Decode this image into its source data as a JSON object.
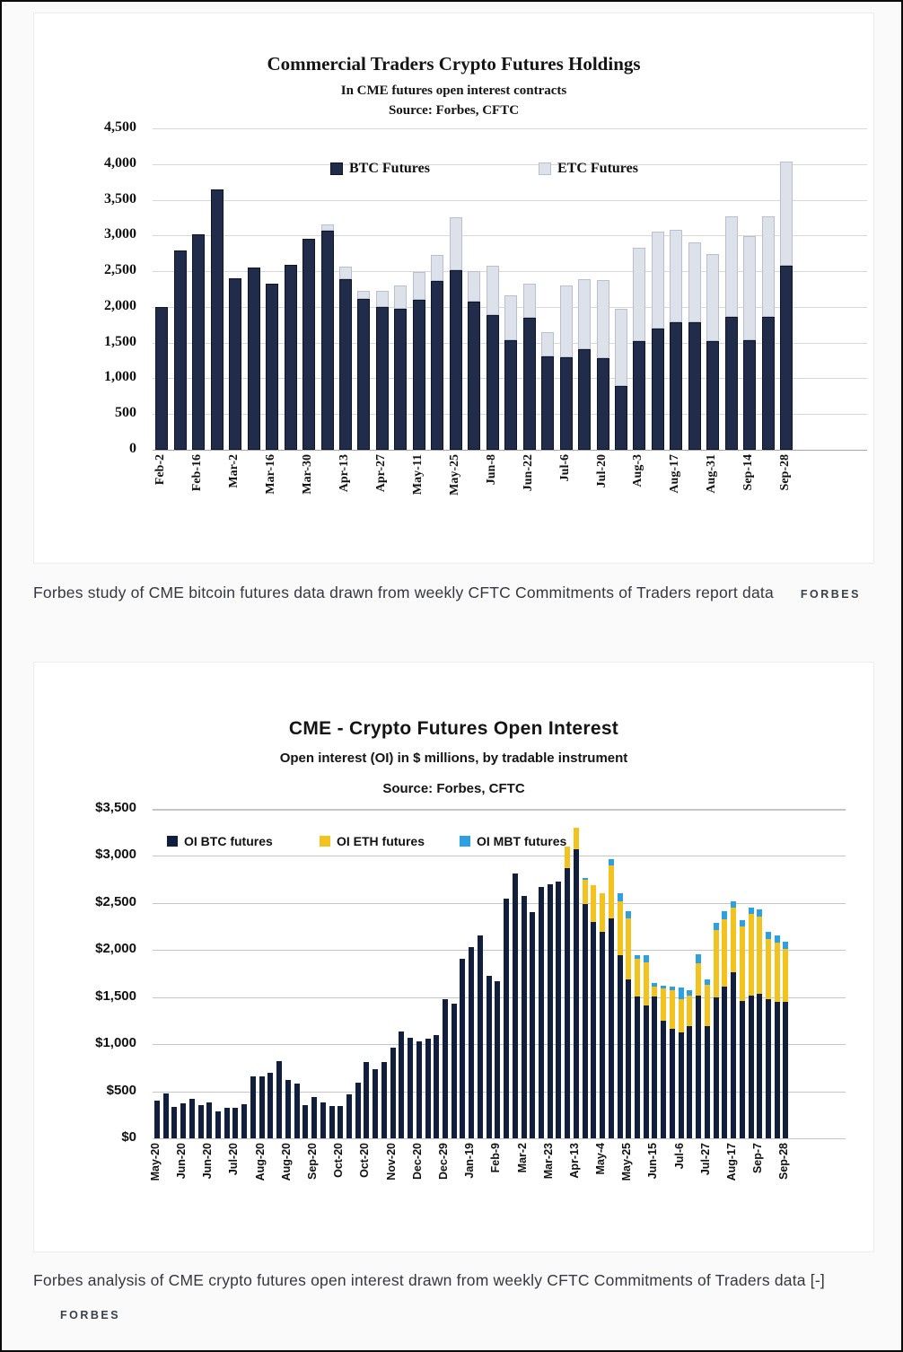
{
  "caption1": {
    "text": "Forbes study of CME bitcoin futures data drawn from weekly CFTC Commitments of Traders report data",
    "brand": "FORBES"
  },
  "caption2": {
    "text": "Forbes analysis of CME crypto futures open interest drawn from weekly CFTC Commitments of Traders data [-]",
    "brand": "FORBES"
  },
  "chart_data": [
    {
      "type": "bar",
      "stacked": true,
      "title": "Commercial Traders Crypto Futures Holdings",
      "subtitle": "In CME futures open interest contracts",
      "source_label": "Source: Forbes, CFTC",
      "xlabel": "",
      "ylabel": "",
      "ylim": [
        0,
        4500
      ],
      "ytick_step": 500,
      "grid": true,
      "legend_position": "inside-top",
      "yticks": [
        "0",
        "500",
        "1,000",
        "1,500",
        "2,000",
        "2,500",
        "3,000",
        "3,500",
        "4,000",
        "4,500"
      ],
      "xticks": [
        "Feb-2",
        "Feb-16",
        "Mar-2",
        "Mar-16",
        "Mar-30",
        "Apr-13",
        "Apr-27",
        "May-11",
        "May-25",
        "Jun-8",
        "Jun-22",
        "Jul-6",
        "Jul-20",
        "Aug-3",
        "Aug-17",
        "Aug-31",
        "Sep-14",
        "Sep-28"
      ],
      "xtick_every": 2,
      "series": [
        {
          "name": "BTC Futures",
          "color": "#202c49",
          "border": "#0c1426",
          "values": [
            2000,
            2790,
            3020,
            3650,
            2400,
            2550,
            2330,
            2590,
            2960,
            3070,
            2390,
            2110,
            2000,
            1970,
            2100,
            2360,
            2520,
            2080,
            1880,
            1530,
            1850,
            1310,
            1300,
            1410,
            1280,
            890,
            1520,
            1700,
            1780,
            1790,
            1520,
            1860,
            1540,
            1860,
            2580
          ]
        },
        {
          "name": "ETC Futures",
          "color": "#dde1ea",
          "border": "#b9bfd0",
          "values": [
            0,
            0,
            0,
            0,
            0,
            0,
            0,
            0,
            0,
            80,
            170,
            110,
            230,
            330,
            390,
            370,
            740,
            420,
            700,
            630,
            480,
            340,
            1000,
            980,
            1100,
            1090,
            1310,
            1360,
            1300,
            1120,
            1220,
            1410,
            1450,
            1410,
            1450
          ]
        }
      ]
    },
    {
      "type": "bar",
      "stacked": true,
      "title": "CME - Crypto Futures Open Interest",
      "subtitle": "Open interest (OI) in $ millions, by tradable instrument",
      "source_label": "Source: Forbes, CFTC",
      "xlabel": "",
      "ylabel": "",
      "ylim": [
        0,
        3500
      ],
      "ytick_step": 500,
      "grid": true,
      "legend_position": "inside-top",
      "yticks": [
        "$0",
        "$500",
        "$1,000",
        "$1,500",
        "$2,000",
        "$2,500",
        "$3,000",
        "$3,500"
      ],
      "xticks": [
        "May-20",
        "Jun-20",
        "Jun-20",
        "Jul-20",
        "Aug-20",
        "Aug-20",
        "Sep-20",
        "Oct-20",
        "Oct-20",
        "Nov-20",
        "Dec-20",
        "Dec-29",
        "Jan-19",
        "Feb-9",
        "Mar-2",
        "Mar-23",
        "Apr-13",
        "May-4",
        "May-25",
        "Jun-15",
        "Jul-6",
        "Jul-27",
        "Aug-17",
        "Sep-7",
        "Sep-28"
      ],
      "xtick_every": 3,
      "series": [
        {
          "name": "OI BTC futures",
          "color": "#121f3c",
          "border": null,
          "values": [
            400,
            480,
            330,
            370,
            420,
            350,
            380,
            290,
            320,
            320,
            360,
            660,
            660,
            700,
            820,
            620,
            580,
            350,
            440,
            380,
            340,
            340,
            470,
            590,
            815,
            735,
            815,
            965,
            1140,
            1070,
            1030,
            1060,
            1100,
            1475,
            1430,
            1910,
            2030,
            2160,
            1730,
            1670,
            2550,
            2810,
            2580,
            2400,
            2670,
            2700,
            2730,
            2870,
            3075,
            2490,
            2300,
            2190,
            2335,
            1950,
            1690,
            1510,
            1415,
            1505,
            1250,
            1160,
            1125,
            1190,
            1520,
            1190,
            1500,
            1615,
            1765,
            1460,
            1520,
            1540,
            1480,
            1450,
            1450
          ]
        },
        {
          "name": "OI ETH futures",
          "color": "#f2c21f",
          "border": null,
          "values": [
            0,
            0,
            0,
            0,
            0,
            0,
            0,
            0,
            0,
            0,
            0,
            0,
            0,
            0,
            0,
            0,
            0,
            0,
            0,
            0,
            0,
            0,
            0,
            0,
            0,
            0,
            0,
            0,
            0,
            0,
            0,
            0,
            0,
            0,
            0,
            0,
            0,
            0,
            0,
            0,
            0,
            0,
            0,
            0,
            0,
            0,
            0,
            230,
            225,
            260,
            385,
            415,
            565,
            570,
            645,
            395,
            455,
            110,
            340,
            415,
            355,
            330,
            340,
            445,
            710,
            715,
            690,
            795,
            860,
            820,
            635,
            630,
            560
          ]
        },
        {
          "name": "OI MBT futures",
          "color": "#2da0e2",
          "border": null,
          "values": [
            0,
            0,
            0,
            0,
            0,
            0,
            0,
            0,
            0,
            0,
            0,
            0,
            0,
            0,
            0,
            0,
            0,
            0,
            0,
            0,
            0,
            0,
            0,
            0,
            0,
            0,
            0,
            0,
            0,
            0,
            0,
            0,
            0,
            0,
            0,
            0,
            0,
            0,
            0,
            0,
            0,
            0,
            0,
            0,
            0,
            0,
            0,
            0,
            0,
            20,
            0,
            0,
            70,
            85,
            80,
            40,
            80,
            40,
            30,
            40,
            120,
            55,
            95,
            55,
            75,
            85,
            65,
            65,
            75,
            75,
            75,
            80,
            80
          ]
        }
      ]
    }
  ]
}
